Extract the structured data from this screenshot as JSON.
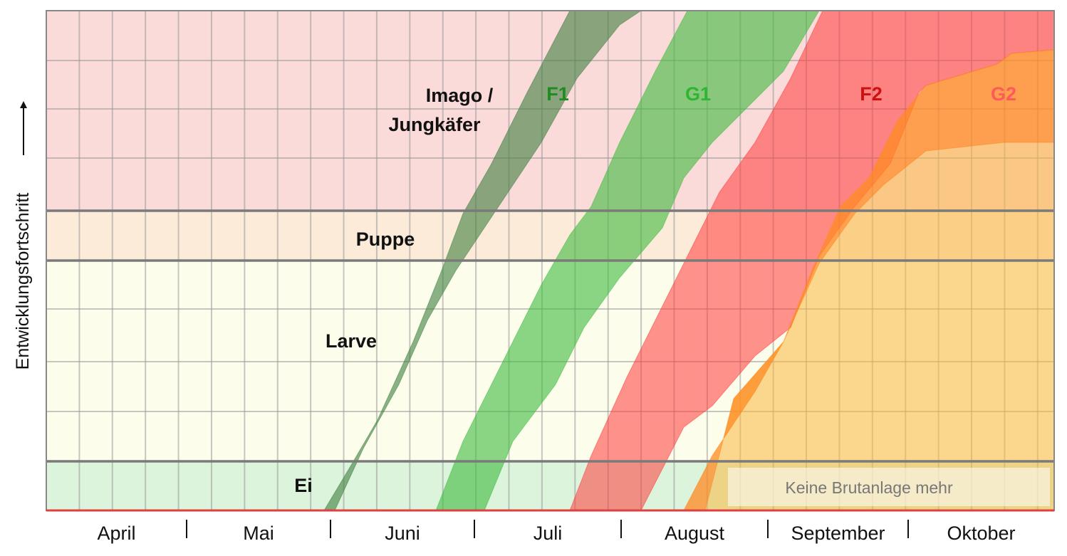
{
  "y_axis_label": "Entwicklungsfortschritt",
  "stages": [
    "Imago /",
    "Jungkäfer",
    "Puppe",
    "Larve",
    "Ei"
  ],
  "months": [
    "April",
    "Mai",
    "Juni",
    "Juli",
    "August",
    "September",
    "Oktober"
  ],
  "series": [
    {
      "name": "F1",
      "color": "#1e8c1e"
    },
    {
      "name": "G1",
      "color": "#2fb52f"
    },
    {
      "name": "F2",
      "color": "#d01010"
    },
    {
      "name": "G2",
      "color": "#ff5a5a"
    }
  ],
  "note": "Keine Brutanlage mehr"
}
